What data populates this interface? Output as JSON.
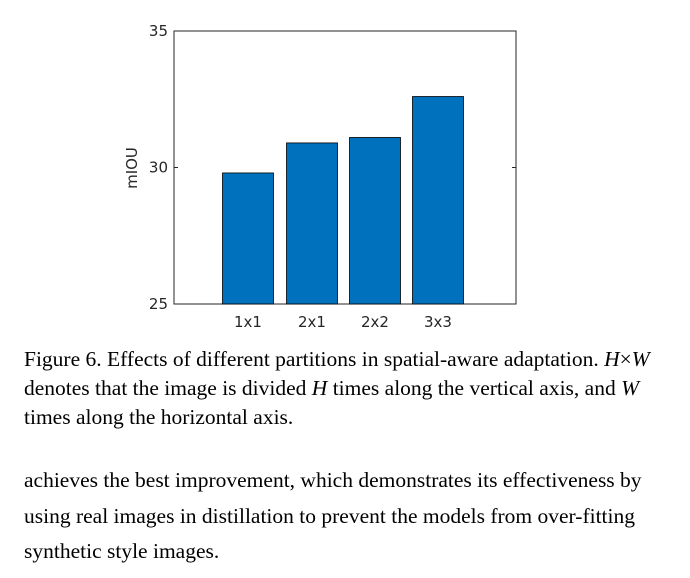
{
  "chart_data": {
    "type": "bar",
    "categories": [
      "1x1",
      "2x1",
      "2x2",
      "3x3"
    ],
    "values": [
      29.8,
      30.9,
      31.1,
      32.6
    ],
    "title": "",
    "xlabel": "",
    "ylabel": "mIOU",
    "ylim": [
      25,
      35
    ],
    "yticks": [
      "25",
      "30",
      "35"
    ],
    "grid": false,
    "bar_color": "#0072bd"
  },
  "caption": {
    "label": "Figure 6.",
    "sentence1": "Effects of different partitions in spatial-aware adaptation.",
    "var_h": "H",
    "times": "×",
    "var_w": "W",
    "text_a": "denotes that the image is divided",
    "text_b": "times along the vertical axis, and",
    "text_c": "times along the horizontal axis."
  },
  "body": {
    "paragraph": "achieves the best improvement, which demonstrates its effectiveness by using real images in distillation to prevent the models from over-fitting synthetic style images."
  }
}
